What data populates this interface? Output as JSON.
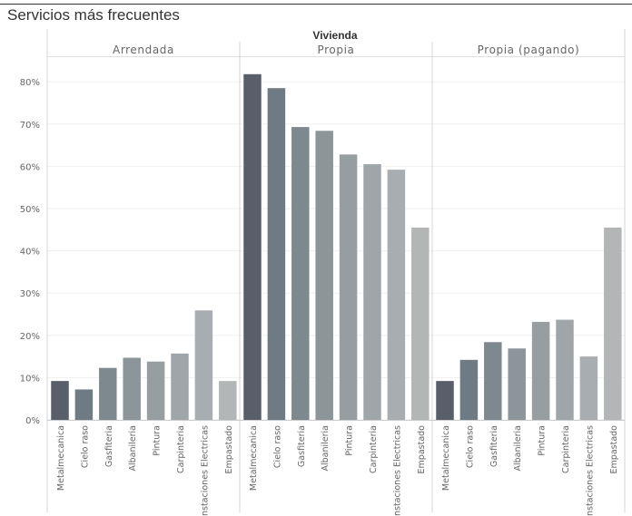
{
  "chart_data": {
    "type": "bar",
    "title": "Servicios más frecuentes",
    "column_header": "Vivienda",
    "yticks": [
      "0%",
      "10%",
      "20%",
      "30%",
      "40%",
      "50%",
      "60%",
      "70%",
      "80%"
    ],
    "ylim": [
      0,
      86
    ],
    "grid": true,
    "categories": [
      "Metalmecanica",
      "Cielo raso",
      "Gasfiteria",
      "Albanileria",
      "Pintura",
      "Carpinteria",
      "Instaciones Electricas",
      "Empastado"
    ],
    "category_colors": [
      "#585f6b",
      "#6f7b84",
      "#7e898f",
      "#8c9599",
      "#979ea2",
      "#9fa6a9",
      "#a7adb0",
      "#b3b6b6"
    ],
    "panels": [
      {
        "name": "Arrendada",
        "values": [
          9.2,
          7.2,
          12.3,
          14.7,
          13.8,
          15.7,
          25.9,
          9.2
        ]
      },
      {
        "name": "Propia",
        "values": [
          81.8,
          78.5,
          69.3,
          68.4,
          62.8,
          60.5,
          59.2,
          45.5
        ]
      },
      {
        "name": "Propia (pagando)",
        "values": [
          9.2,
          14.2,
          18.4,
          16.9,
          23.2,
          23.7,
          15.0,
          45.5
        ]
      }
    ]
  }
}
